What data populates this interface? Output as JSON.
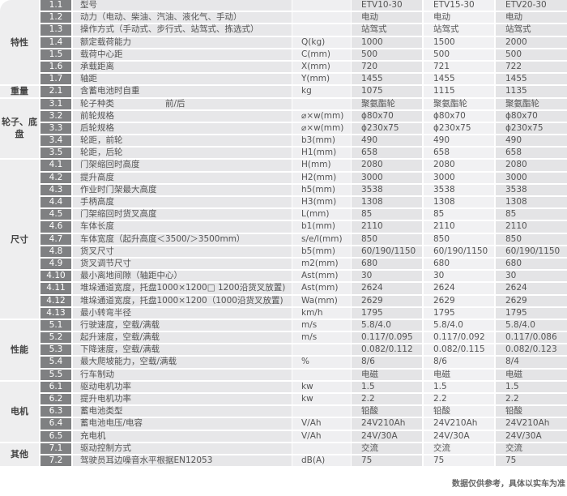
{
  "models": [
    "ETV10-30",
    "ETV15-30",
    "ETV20-30"
  ],
  "groups": [
    {
      "name": "特性",
      "rows": [
        {
          "no": "1.1",
          "desc": "型号",
          "unit": "",
          "values": [
            "ETV10-30",
            "ETV15-30",
            "ETV20-30"
          ]
        },
        {
          "no": "1.2",
          "desc": "动力（电动、柴油、汽油、液化气、手动）",
          "unit": "",
          "values": [
            "电动",
            "电动",
            "电动"
          ]
        },
        {
          "no": "1.3",
          "desc": "操作方式（手动式、步行式、站驾式、拣选式）",
          "unit": "",
          "values": [
            "站驾式",
            "站驾式",
            "站驾式"
          ]
        },
        {
          "no": "1.4",
          "desc": "额定载荷能力",
          "unit": "Q(kg)",
          "values": [
            "1000",
            "1500",
            "2000"
          ]
        },
        {
          "no": "1.5",
          "desc": "载荷中心距",
          "unit": "C(mm)",
          "values": [
            "500",
            "500",
            "500"
          ]
        },
        {
          "no": "1.6",
          "desc": "承载距离",
          "unit": "X(mm)",
          "values": [
            "720",
            "721",
            "722"
          ]
        },
        {
          "no": "1.7",
          "desc": "轴距",
          "unit": "Y(mm)",
          "values": [
            "1455",
            "1455",
            "1455"
          ]
        }
      ]
    },
    {
      "name": "重量",
      "rows": [
        {
          "no": "2.1",
          "desc": "含蓄电池时自重",
          "unit": "kg",
          "values": [
            "1075",
            "1115",
            "1135"
          ]
        }
      ]
    },
    {
      "name": "轮子、底盘",
      "rows": [
        {
          "no": "3.1",
          "desc": "轮子种类　　　　　　前/后",
          "unit": "",
          "values": [
            "聚氨酯轮",
            "聚氨酯轮",
            "聚氨酯轮"
          ]
        },
        {
          "no": "3.2",
          "desc": "前轮规格",
          "unit": "⌀×w(mm)",
          "values": [
            "ϕ80x70",
            "ϕ80x70",
            "ϕ80x70"
          ]
        },
        {
          "no": "3.3",
          "desc": "后轮规格",
          "unit": "⌀×w(mm)",
          "values": [
            "ϕ230x75",
            "ϕ230x75",
            "ϕ230x75"
          ]
        },
        {
          "no": "3.4",
          "desc": "轮距，前轮",
          "unit": "b3(mm)",
          "values": [
            "490",
            "490",
            "490"
          ]
        },
        {
          "no": "3.5",
          "desc": "轮距，后轮",
          "unit": "H1(mm)",
          "values": [
            "658",
            "658",
            "658"
          ]
        }
      ]
    },
    {
      "name": "尺寸",
      "rows": [
        {
          "no": "4.1",
          "desc": "门架缩回时高度",
          "unit": "H(mm)",
          "values": [
            "2080",
            "2080",
            "2080"
          ]
        },
        {
          "no": "4.2",
          "desc": "提升高度",
          "unit": "H2(mm)",
          "values": [
            "3000",
            "3000",
            "3000"
          ]
        },
        {
          "no": "4.3",
          "desc": "作业时门架最大高度",
          "unit": "h5(mm)",
          "values": [
            "3538",
            "3538",
            "3538"
          ]
        },
        {
          "no": "4.4",
          "desc": "手柄高度",
          "unit": "H3(mm)",
          "values": [
            "1308",
            "1308",
            "1308"
          ]
        },
        {
          "no": "4.5",
          "desc": "门架缩回时货叉高度",
          "unit": "L(mm)",
          "values": [
            "85",
            "85",
            "85"
          ]
        },
        {
          "no": "4.6",
          "desc": "车体长度",
          "unit": "b1(mm)",
          "values": [
            "2110",
            "2110",
            "2110"
          ]
        },
        {
          "no": "4.7",
          "desc": "车体宽度（起升高度＜3500/＞3500mm）",
          "unit": "s/e/l(mm)",
          "values": [
            "850",
            "850",
            "850"
          ]
        },
        {
          "no": "4.8",
          "desc": "货叉尺寸",
          "unit": "b5(mm)",
          "values": [
            "60/190/1150",
            "60/190/1150",
            "60/190/1150"
          ]
        },
        {
          "no": "4.9",
          "desc": "货叉调节尺寸",
          "unit": "m2(mm)",
          "values": [
            "680",
            "680",
            "680"
          ]
        },
        {
          "no": "4.10",
          "desc": "最小离地间隙（轴距中心）",
          "unit": "Ast(mm)",
          "values": [
            "30",
            "30",
            "30"
          ]
        },
        {
          "no": "4.11",
          "desc": "堆垛通道宽度，托盘1000×1200□ 1200沿货叉放置)",
          "unit": "Ast(mm)",
          "values": [
            "2624",
            "2624",
            "2624"
          ]
        },
        {
          "no": "4.12",
          "desc": "堆垛通道宽度，托盘1000×1200（1000沿货叉放置)",
          "unit": "Wa(mm)",
          "values": [
            "2629",
            "2629",
            "2629"
          ]
        },
        {
          "no": "4.13",
          "desc": "最小转弯半径",
          "unit": "km/h",
          "values": [
            "1795",
            "1795",
            "1795"
          ]
        }
      ]
    },
    {
      "name": "性能",
      "rows": [
        {
          "no": "5.1",
          "desc": "行驶速度，空载/满载",
          "unit": "m/s",
          "values": [
            "5.8/4.0",
            "5.8/4.0",
            "5.8/4.0"
          ]
        },
        {
          "no": "5.2",
          "desc": "起升速度，空载/满载",
          "unit": "m/s",
          "values": [
            "0.117/0.095",
            "0.117/0.092",
            "0.117/0.086"
          ]
        },
        {
          "no": "5.3",
          "desc": "下降速度，空载/满载",
          "unit": "",
          "values": [
            "0.082/0.112",
            "0.082/0.115",
            "0.082/0.123"
          ]
        },
        {
          "no": "5.4",
          "desc": "最大爬坡能力，空载/满载",
          "unit": "%",
          "values": [
            "8/6",
            "8/6",
            "8/4"
          ]
        },
        {
          "no": "5.5",
          "desc": "行车制动",
          "unit": "",
          "values": [
            "电磁",
            "电磁",
            "电磁"
          ]
        }
      ]
    },
    {
      "name": "电机",
      "rows": [
        {
          "no": "6.1",
          "desc": "驱动电机功率",
          "unit": "kw",
          "values": [
            "1.5",
            "1.5",
            "1.5"
          ]
        },
        {
          "no": "6.2",
          "desc": "提升电机功率",
          "unit": "kw",
          "values": [
            "2.2",
            "2.2",
            "2.2"
          ]
        },
        {
          "no": "6.3",
          "desc": "蓄电池类型",
          "unit": "",
          "values": [
            "铅酸",
            "铅酸",
            "铅酸"
          ]
        },
        {
          "no": "6.4",
          "desc": "蓄电池电压/电容",
          "unit": "V/Ah",
          "values": [
            "24V210Ah",
            "24V210Ah",
            "24V210Ah"
          ]
        },
        {
          "no": "6.5",
          "desc": "充电机",
          "unit": "V/Ah",
          "values": [
            "24V/30A",
            "24V/30A",
            "24V/30A"
          ]
        }
      ]
    },
    {
      "name": "其他",
      "rows": [
        {
          "no": "7.1",
          "desc": "驱动控制方式",
          "unit": "",
          "values": [
            "交流",
            "交流",
            "交流"
          ]
        },
        {
          "no": "7.2",
          "desc": "驾驶员耳边噪音水平根据EN12053",
          "unit": "dB(A)",
          "values": [
            "75",
            "75",
            "75"
          ]
        }
      ]
    }
  ],
  "footer_note": "数据仅供参考，具体以实车为准"
}
